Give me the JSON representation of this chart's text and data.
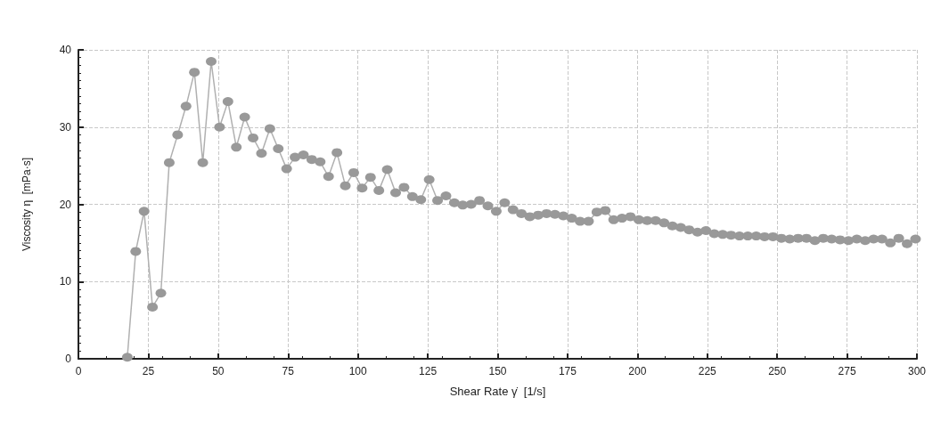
{
  "chart_data": {
    "type": "line",
    "xlabel": "Shear Rate γ̇  [1/s]",
    "ylabel": "Viscosity η  [mPa·s]",
    "x": [
      17.5,
      20.5,
      23.5,
      26.5,
      29.5,
      32.5,
      35.5,
      38.5,
      41.5,
      44.5,
      47.5,
      50.5,
      53.5,
      56.5,
      59.5,
      62.5,
      65.5,
      68.5,
      71.5,
      74.5,
      77.5,
      80.5,
      83.5,
      86.5,
      89.5,
      92.5,
      95.5,
      98.5,
      101.5,
      104.5,
      107.5,
      110.5,
      113.5,
      116.5,
      119.5,
      122.5,
      125.5,
      128.5,
      131.5,
      134.5,
      137.5,
      140.5,
      143.5,
      146.5,
      149.5,
      152.5,
      155.5,
      158.5,
      161.5,
      164.5,
      167.5,
      170.5,
      173.5,
      176.5,
      179.5,
      182.5,
      185.5,
      188.5,
      191.5,
      194.5,
      197.5,
      200.5,
      203.5,
      206.5,
      209.5,
      212.5,
      215.5,
      218.5,
      221.5,
      224.5,
      227.5,
      230.5,
      233.5,
      236.5,
      239.5,
      242.5,
      245.5,
      248.5,
      251.5,
      254.5,
      257.5,
      260.5,
      263.5,
      266.5,
      269.5,
      272.5,
      275.5,
      278.5,
      281.5,
      284.5,
      287.5,
      290.5,
      293.5,
      296.5,
      299.5
    ],
    "series": [
      {
        "color": "#999999",
        "values": [
          0.2,
          13.9,
          19.1,
          6.7,
          8.5,
          25.4,
          29,
          32.7,
          37.1,
          25.4,
          38.5,
          30,
          33.3,
          27.4,
          31.3,
          28.6,
          26.6,
          29.8,
          27.2,
          24.6,
          26.1,
          26.4,
          25.8,
          25.5,
          23.6,
          26.7,
          22.4,
          24.1,
          22.1,
          23.5,
          21.8,
          24.5,
          21.5,
          22.2,
          21,
          20.6,
          23.2,
          20.5,
          21.1,
          20.2,
          19.9,
          20,
          20.5,
          19.8,
          19.1,
          20.2,
          19.3,
          18.8,
          18.4,
          18.6,
          18.8,
          18.7,
          18.5,
          18.2,
          17.8,
          17.8,
          19,
          19.2,
          18,
          18.2,
          18.4,
          18,
          17.9,
          17.9,
          17.6,
          17.2,
          17,
          16.7,
          16.4,
          16.6,
          16.2,
          16.1,
          16,
          15.9,
          15.9,
          15.9,
          15.8,
          15.8,
          15.6,
          15.5,
          15.6,
          15.6,
          15.3,
          15.6,
          15.5,
          15.4,
          15.3,
          15.5,
          15.3,
          15.5,
          15.5,
          15,
          15.6,
          14.9,
          15.5
        ]
      }
    ],
    "xlim": [
      0,
      300
    ],
    "xticks": [
      0,
      25,
      50,
      75,
      100,
      125,
      150,
      175,
      200,
      225,
      250,
      275,
      300
    ],
    "ylim": [
      0,
      40
    ],
    "yticks": [
      0,
      10,
      20,
      30,
      40
    ],
    "grid": true,
    "marker": "circle",
    "line_style": "solid"
  }
}
